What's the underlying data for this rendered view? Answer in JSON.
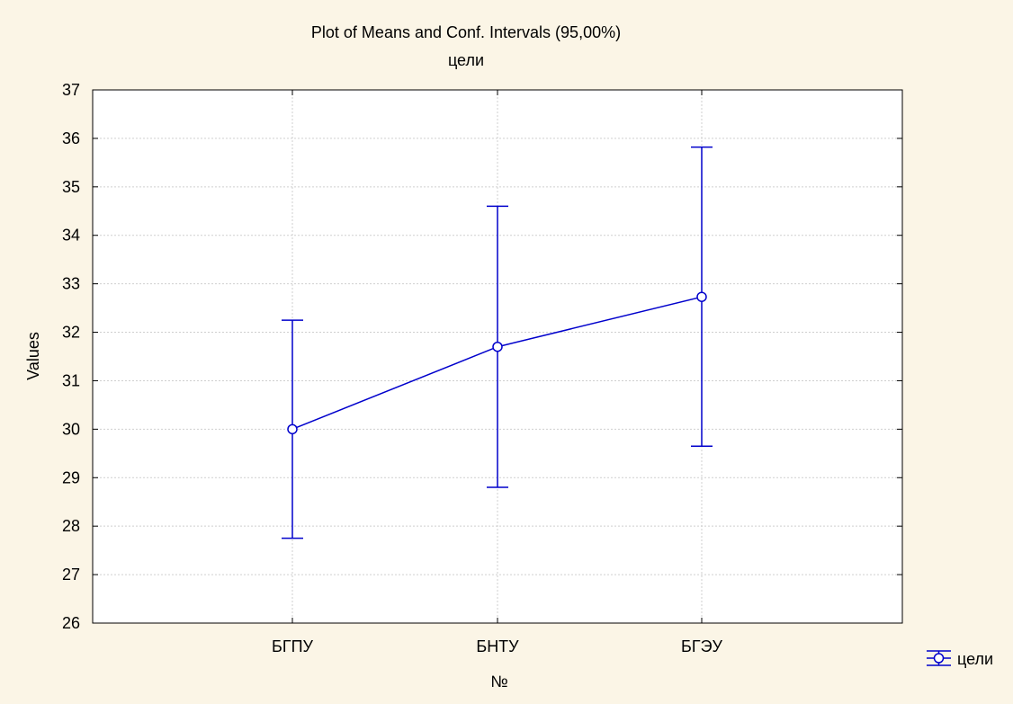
{
  "chart_data": {
    "type": "line",
    "title": "Plot of Means and Conf. Intervals (95,00%)",
    "subtitle": "цели",
    "xlabel": "№",
    "ylabel": "Values",
    "categories": [
      "БГПУ",
      "БНТУ",
      "БГЭУ"
    ],
    "ylim": [
      26,
      37
    ],
    "yticks": [
      26,
      27,
      28,
      29,
      30,
      31,
      32,
      33,
      34,
      35,
      36,
      37
    ],
    "grid": true,
    "legend_position": "bottom-right",
    "series": [
      {
        "name": "цели",
        "color": "#0000cc",
        "marker": "circle",
        "means": [
          30.0,
          31.7,
          32.73
        ],
        "ci_lower": [
          27.75,
          28.8,
          29.65
        ],
        "ci_upper": [
          32.25,
          34.6,
          35.82
        ]
      }
    ]
  }
}
